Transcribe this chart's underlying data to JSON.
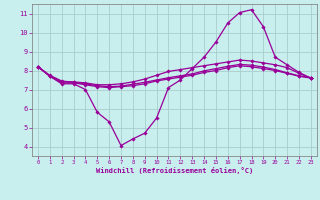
{
  "xlabel": "Windchill (Refroidissement éolien,°C)",
  "xlim": [
    -0.5,
    23.5
  ],
  "ylim": [
    3.5,
    11.5
  ],
  "yticks": [
    4,
    5,
    6,
    7,
    8,
    9,
    10,
    11
  ],
  "xticks": [
    0,
    1,
    2,
    3,
    4,
    5,
    6,
    7,
    8,
    9,
    10,
    11,
    12,
    13,
    14,
    15,
    16,
    17,
    18,
    19,
    20,
    21,
    22,
    23
  ],
  "bg_color": "#c8eeee",
  "line_color": "#990099",
  "grid_color": "#aacccc",
  "lines": [
    {
      "x": [
        0,
        1,
        2,
        3,
        4,
        5,
        6,
        7,
        8,
        9,
        10,
        11,
        12,
        13,
        14,
        15,
        16,
        17,
        18,
        19,
        20,
        21,
        22,
        23
      ],
      "y": [
        8.2,
        7.7,
        7.3,
        7.3,
        7.0,
        5.8,
        5.3,
        4.05,
        4.4,
        4.7,
        5.5,
        7.1,
        7.5,
        8.1,
        8.7,
        9.5,
        10.5,
        11.05,
        11.2,
        10.3,
        8.7,
        8.3,
        7.9,
        7.6
      ]
    },
    {
      "x": [
        0,
        1,
        2,
        3,
        4,
        5,
        6,
        7,
        8,
        9,
        10,
        11,
        12,
        13,
        14,
        15,
        16,
        17,
        18,
        19,
        20,
        21,
        22,
        23
      ],
      "y": [
        8.2,
        7.7,
        7.35,
        7.35,
        7.25,
        7.15,
        7.1,
        7.15,
        7.2,
        7.3,
        7.45,
        7.55,
        7.65,
        7.75,
        7.9,
        8.0,
        8.15,
        8.25,
        8.2,
        8.1,
        8.0,
        7.85,
        7.7,
        7.6
      ]
    },
    {
      "x": [
        0,
        1,
        2,
        3,
        4,
        5,
        6,
        7,
        8,
        9,
        10,
        11,
        12,
        13,
        14,
        15,
        16,
        17,
        18,
        19,
        20,
        21,
        22,
        23
      ],
      "y": [
        8.2,
        7.7,
        7.4,
        7.4,
        7.35,
        7.25,
        7.25,
        7.3,
        7.4,
        7.55,
        7.75,
        7.95,
        8.05,
        8.15,
        8.25,
        8.35,
        8.45,
        8.55,
        8.5,
        8.4,
        8.3,
        8.15,
        7.85,
        7.6
      ]
    },
    {
      "x": [
        0,
        1,
        2,
        3,
        4,
        5,
        6,
        7,
        8,
        9,
        10,
        11,
        12,
        13,
        14,
        15,
        16,
        17,
        18,
        19,
        20,
        21,
        22,
        23
      ],
      "y": [
        8.2,
        7.75,
        7.45,
        7.38,
        7.3,
        7.2,
        7.15,
        7.18,
        7.28,
        7.38,
        7.5,
        7.62,
        7.72,
        7.82,
        7.98,
        8.1,
        8.22,
        8.32,
        8.28,
        8.18,
        8.05,
        7.88,
        7.72,
        7.62
      ]
    }
  ]
}
